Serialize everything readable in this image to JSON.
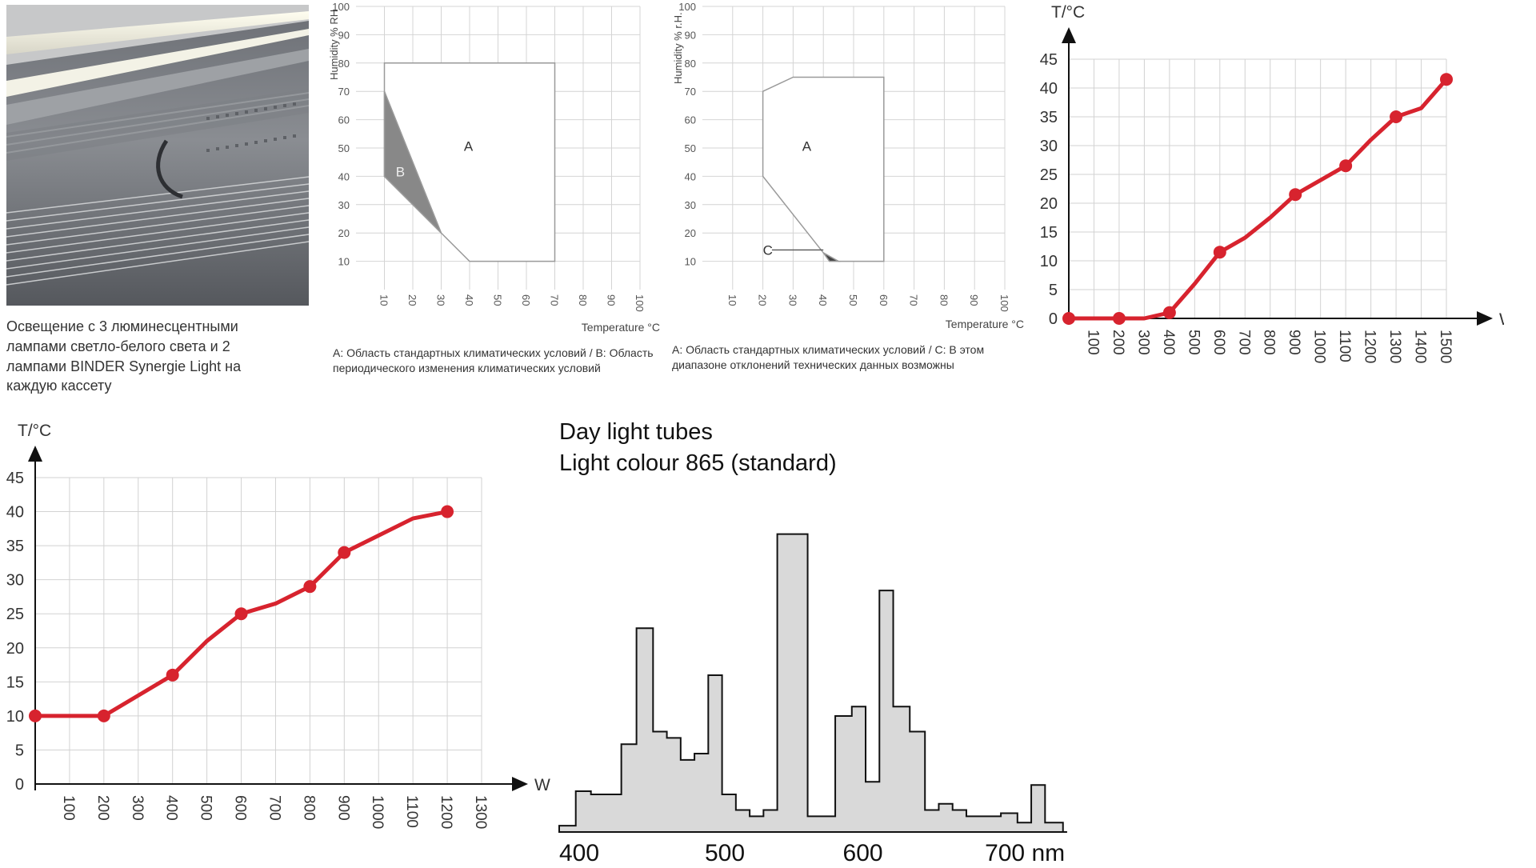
{
  "photo": {
    "caption": "Освещение с 3 люминесцентными лампами светло-белого света и 2 лампами BINDER Synergie Light на каждую кассету"
  },
  "chart_data": [
    {
      "type": "area",
      "ylabel": "Humidity % RH",
      "xlabel": "Temperature °C",
      "xticks": [
        10,
        20,
        30,
        40,
        50,
        60,
        70,
        80,
        90,
        100
      ],
      "yticks": [
        10,
        20,
        30,
        40,
        50,
        60,
        70,
        80,
        90,
        100
      ],
      "xlim": [
        0,
        100
      ],
      "ylim": [
        0,
        100
      ],
      "grid": true,
      "regions": [
        {
          "label": "A",
          "polygon": [
            [
              10,
              80
            ],
            [
              70,
              80
            ],
            [
              70,
              10
            ],
            [
              40,
              10
            ],
            [
              10,
              40
            ],
            [
              10,
              80
            ]
          ]
        },
        {
          "label": "B",
          "polygon": [
            [
              10,
              70
            ],
            [
              30,
              20
            ],
            [
              10,
              40
            ]
          ],
          "fill": "#888888"
        }
      ],
      "caption": "A: Область стандартных климатических условий / B: Область периодического изменения климатических условий"
    },
    {
      "type": "area",
      "ylabel": "Humidity % r.H.",
      "xlabel": "Temperature °C",
      "xticks": [
        10,
        20,
        30,
        40,
        50,
        60,
        70,
        80,
        90,
        100
      ],
      "yticks": [
        10,
        20,
        30,
        40,
        50,
        60,
        70,
        80,
        90,
        100
      ],
      "xlim": [
        0,
        100
      ],
      "ylim": [
        0,
        100
      ],
      "grid": true,
      "regions": [
        {
          "label": "A",
          "polygon": [
            [
              20,
              70
            ],
            [
              30,
              75
            ],
            [
              60,
              75
            ],
            [
              60,
              10
            ],
            [
              45,
              10
            ],
            [
              40,
              13
            ],
            [
              20,
              40
            ],
            [
              20,
              70
            ]
          ]
        },
        {
          "label": "C",
          "polygon": [
            [
              40,
              13
            ],
            [
              45,
              10
            ],
            [
              42,
              10
            ]
          ],
          "fill": "#444444"
        }
      ],
      "caption": "A: Область стандартных климатических условий / C: В этом диапазоне отклонений технических данных возможны"
    },
    {
      "type": "line",
      "ylabel": "T/°C",
      "xlabel": "W",
      "xticks": [
        100,
        200,
        300,
        400,
        500,
        600,
        700,
        800,
        900,
        1000,
        1100,
        1200,
        1300,
        1400,
        1500
      ],
      "yticks": [
        0,
        5,
        10,
        15,
        20,
        25,
        30,
        35,
        40,
        45
      ],
      "xlim": [
        0,
        1500
      ],
      "ylim": [
        0,
        45
      ],
      "grid": true,
      "series": [
        {
          "color": "#d7232e",
          "x": [
            0,
            100,
            200,
            300,
            400,
            500,
            600,
            700,
            800,
            900,
            1000,
            1100,
            1200,
            1300,
            1400,
            1500
          ],
          "y": [
            0,
            0,
            0,
            0,
            1,
            6,
            11.5,
            14,
            17.5,
            21.5,
            24,
            26.5,
            31,
            35,
            36.5,
            41.5
          ],
          "markers_at": [
            0,
            200,
            400,
            600,
            900,
            1100,
            1300,
            1500
          ]
        }
      ]
    },
    {
      "type": "line",
      "ylabel": "T/°C",
      "xlabel": "W",
      "xticks": [
        100,
        200,
        300,
        400,
        500,
        600,
        700,
        800,
        900,
        1000,
        1100,
        1200,
        1300
      ],
      "yticks": [
        0,
        5,
        10,
        15,
        20,
        25,
        30,
        35,
        40,
        45
      ],
      "xlim": [
        0,
        1300
      ],
      "ylim": [
        0,
        45
      ],
      "grid": true,
      "series": [
        {
          "color": "#d7232e",
          "x": [
            0,
            100,
            200,
            300,
            400,
            500,
            600,
            700,
            800,
            900,
            1000,
            1100,
            1200
          ],
          "y": [
            10,
            10,
            10,
            13,
            16,
            21,
            25,
            26.5,
            29,
            34,
            36.5,
            39,
            40
          ],
          "markers_at": [
            0,
            200,
            400,
            600,
            800,
            900,
            1200
          ]
        }
      ]
    },
    {
      "type": "bar",
      "title": "Day light tubes",
      "subtitle": "Light colour 865 (standard)",
      "xticks": [
        "400",
        "500",
        "600",
        "700 nm"
      ],
      "xlim": [
        380,
        755
      ],
      "steps": [
        [
          380,
          392,
          2
        ],
        [
          392,
          403,
          13
        ],
        [
          403,
          425,
          12
        ],
        [
          425,
          436,
          28
        ],
        [
          436,
          448,
          65
        ],
        [
          448,
          458,
          32
        ],
        [
          458,
          468,
          30
        ],
        [
          468,
          478,
          23
        ],
        [
          478,
          488,
          25
        ],
        [
          488,
          498,
          50
        ],
        [
          498,
          508,
          12
        ],
        [
          508,
          518,
          7
        ],
        [
          518,
          528,
          5
        ],
        [
          528,
          538,
          7
        ],
        [
          538,
          560,
          95
        ],
        [
          560,
          570,
          5
        ],
        [
          570,
          580,
          5
        ],
        [
          580,
          592,
          37
        ],
        [
          592,
          602,
          40
        ],
        [
          602,
          612,
          16
        ],
        [
          612,
          622,
          77
        ],
        [
          622,
          634,
          40
        ],
        [
          634,
          645,
          32
        ],
        [
          645,
          655,
          7
        ],
        [
          655,
          665,
          9
        ],
        [
          665,
          675,
          7
        ],
        [
          675,
          686,
          5
        ],
        [
          686,
          700,
          5
        ],
        [
          700,
          712,
          6
        ],
        [
          712,
          722,
          3
        ],
        [
          722,
          732,
          15
        ],
        [
          732,
          745,
          3
        ]
      ],
      "ylim": [
        0,
        100
      ]
    }
  ]
}
